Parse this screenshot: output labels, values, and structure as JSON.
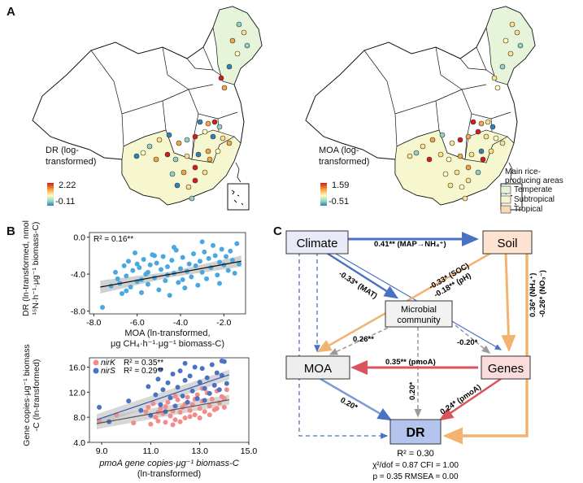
{
  "panel_a": {
    "letter": "A",
    "map_left": {
      "legend_title_1": "DR (log-",
      "legend_title_2": "transformed)",
      "legend_max": "2.22",
      "legend_min": "-0.11"
    },
    "map_right": {
      "legend_title_1": "MOA (log-",
      "legend_title_2": "transformed)",
      "legend_max": "1.59",
      "legend_min": "-0.51"
    },
    "rice_areas": {
      "title_1": "Main rice-",
      "title_2": "producing areas",
      "items": [
        {
          "label": "Temperate",
          "color": "#e6f4d9"
        },
        {
          "label": "Subtropical",
          "color": "#f6f7cf"
        },
        {
          "label": "Tropical",
          "color": "#f8d9b6"
        }
      ]
    }
  },
  "panel_b": {
    "letter": "B",
    "scatter_top": {
      "r2": "R² = 0.16**",
      "ylabel_1": "DR (ln-transformed, nmol",
      "ylabel_2": "¹⁵N·h⁻¹·μg⁻¹ biomass-C)",
      "xlabel_1": "MOA (ln-transformed,",
      "xlabel_2": "μg CH₄·h⁻¹·μg⁻¹ biomass-C)",
      "yticks": [
        "0.0",
        "-4.0",
        "-8.0"
      ],
      "xticks": [
        "-8.0",
        "-6.0",
        "-4.0",
        "-2.0"
      ]
    },
    "scatter_bottom": {
      "legend": [
        {
          "name": "nirK",
          "r2": "R² = 0.35**",
          "color": "#f28b8b"
        },
        {
          "name": "nirS",
          "r2": "R² = 0.29**",
          "color": "#4a72c4"
        }
      ],
      "ylabel_1": "Gene copies·μg⁻¹ biomass",
      "ylabel_2": "-C (ln-transformed)",
      "xlabel_1": "pmoA gene copies·μg⁻¹ biomass-C",
      "xlabel_2": "(ln-transformed)",
      "yticks": [
        "16.0",
        "12.0",
        "8.0",
        "4.0"
      ],
      "xticks": [
        "9.0",
        "11.0",
        "13.0",
        "15.0"
      ]
    }
  },
  "chart_data": [
    {
      "type": "scatter",
      "title": "",
      "xlabel": "MOA (ln-transformed, μg CH4·h-1·μg-1 biomass-C)",
      "ylabel": "DR (ln-transformed, nmol 15N·h-1·μg-1 biomass-C)",
      "xlim": [
        -8.2,
        -1.0
      ],
      "ylim": [
        -8.3,
        0.5
      ],
      "series": [
        {
          "name": "DR vs MOA",
          "points": [
            [
              -7.6,
              -7.6
            ],
            [
              -7.2,
              -5.3
            ],
            [
              -7.0,
              -3.8
            ],
            [
              -6.9,
              -4.5
            ],
            [
              -6.8,
              -5.0
            ],
            [
              -6.7,
              -6.1
            ],
            [
              -6.6,
              -3.1
            ],
            [
              -6.5,
              -4.2
            ],
            [
              -6.4,
              -2.6
            ],
            [
              -6.3,
              -5.4
            ],
            [
              -6.2,
              -3.6
            ],
            [
              -6.1,
              -1.7
            ],
            [
              -6.0,
              -4.8
            ],
            [
              -5.9,
              -3.3
            ],
            [
              -5.8,
              -6.0
            ],
            [
              -5.7,
              -2.4
            ],
            [
              -5.6,
              -4.0
            ],
            [
              -5.5,
              -5.1
            ],
            [
              -5.4,
              -3.0
            ],
            [
              -5.3,
              -1.9
            ],
            [
              -5.2,
              -4.4
            ],
            [
              -5.1,
              -2.8
            ],
            [
              -5.0,
              -5.7
            ],
            [
              -4.9,
              -3.5
            ],
            [
              -4.8,
              -2.1
            ],
            [
              -4.7,
              -4.7
            ],
            [
              -4.6,
              -3.2
            ],
            [
              -4.5,
              -6.3
            ],
            [
              -4.4,
              -2.5
            ],
            [
              -4.3,
              -3.9
            ],
            [
              -4.2,
              -1.4
            ],
            [
              -4.1,
              -4.9
            ],
            [
              -4.0,
              -3.4
            ],
            [
              -3.9,
              -2.2
            ],
            [
              -3.8,
              -5.5
            ],
            [
              -3.7,
              -3.7
            ],
            [
              -3.6,
              -2.9
            ],
            [
              -3.5,
              -4.3
            ],
            [
              -3.4,
              -1.8
            ],
            [
              -3.3,
              -3.1
            ],
            [
              -3.2,
              -5.2
            ],
            [
              -3.1,
              -2.6
            ],
            [
              -3.0,
              -3.8
            ],
            [
              -2.9,
              -1.6
            ],
            [
              -2.8,
              -4.5
            ],
            [
              -2.7,
              -2.3
            ],
            [
              -2.6,
              -3.3
            ],
            [
              -2.5,
              -0.9
            ],
            [
              -2.4,
              -2.0
            ],
            [
              -2.3,
              -4.1
            ],
            [
              -2.2,
              -2.7
            ],
            [
              -2.1,
              -1.3
            ],
            [
              -2.0,
              -3.0
            ],
            [
              -1.9,
              -2.1
            ],
            [
              -1.8,
              -3.6
            ],
            [
              -1.7,
              -1.5
            ],
            [
              -1.6,
              -2.5
            ],
            [
              -1.5,
              -3.9
            ],
            [
              -1.4,
              -0.7
            ],
            [
              -1.3,
              -2.9
            ],
            [
              -5.5,
              -3.8
            ],
            [
              -6.0,
              -2.9
            ],
            [
              -4.6,
              -4.1
            ],
            [
              -3.9,
              -4.6
            ],
            [
              -5.2,
              -2.0
            ],
            [
              -4.3,
              -1.1
            ],
            [
              -3.0,
              -0.5
            ],
            [
              -2.2,
              -5.0
            ],
            [
              -6.5,
              -5.8
            ],
            [
              -5.8,
              -4.6
            ]
          ]
        }
      ],
      "trend_line": [
        [
          -7.7,
          -5.4
        ],
        [
          -1.2,
          -2.6
        ]
      ],
      "annotation": "R² = 0.16**"
    },
    {
      "type": "scatter",
      "title": "",
      "xlabel": "pmoA gene copies·μg-1 biomass-C (ln-transformed)",
      "ylabel": "Gene copies·μg-1 biomass-C (ln-transformed)",
      "xlim": [
        8.5,
        15.0
      ],
      "ylim": [
        4.0,
        17.5
      ],
      "series": [
        {
          "name": "nirK",
          "points": [
            [
              8.9,
              7.4
            ],
            [
              9.6,
              8.4
            ],
            [
              10.3,
              7.1
            ],
            [
              10.8,
              8.9
            ],
            [
              11.0,
              6.9
            ],
            [
              11.1,
              10.2
            ],
            [
              11.2,
              8.0
            ],
            [
              11.3,
              7.4
            ],
            [
              11.4,
              9.4
            ],
            [
              11.5,
              8.6
            ],
            [
              11.6,
              7.2
            ],
            [
              11.7,
              10.4
            ],
            [
              11.8,
              8.2
            ],
            [
              11.9,
              9.0
            ],
            [
              12.0,
              7.6
            ],
            [
              12.1,
              10.8
            ],
            [
              12.2,
              8.8
            ],
            [
              12.3,
              9.6
            ],
            [
              12.4,
              7.9
            ],
            [
              12.5,
              11.2
            ],
            [
              12.6,
              9.1
            ],
            [
              12.7,
              10.0
            ],
            [
              12.8,
              8.4
            ],
            [
              12.9,
              11.6
            ],
            [
              13.0,
              9.4
            ],
            [
              13.1,
              10.6
            ],
            [
              13.2,
              8.9
            ],
            [
              13.3,
              11.9
            ],
            [
              13.4,
              9.8
            ],
            [
              13.5,
              10.9
            ],
            [
              13.6,
              9.2
            ],
            [
              13.7,
              12.2
            ],
            [
              13.8,
              10.3
            ],
            [
              13.9,
              11.3
            ],
            [
              14.0,
              9.6
            ],
            [
              14.1,
              12.4
            ],
            [
              11.6,
              9.7
            ],
            [
              12.2,
              7.3
            ],
            [
              12.8,
              10.9
            ],
            [
              13.4,
              8.4
            ],
            [
              14.0,
              11.0
            ],
            [
              11.3,
              8.8
            ],
            [
              12.6,
              8.1
            ],
            [
              13.1,
              12.6
            ],
            [
              10.9,
              9.6
            ],
            [
              12.0,
              11.4
            ],
            [
              13.7,
              9.4
            ],
            [
              11.9,
              6.8
            ],
            [
              12.4,
              10.1
            ],
            [
              13.0,
              7.9
            ]
          ]
        },
        {
          "name": "nirS",
          "points": [
            [
              8.9,
              9.6
            ],
            [
              9.3,
              7.3
            ],
            [
              10.1,
              10.6
            ],
            [
              10.6,
              9.1
            ],
            [
              10.9,
              12.9
            ],
            [
              11.0,
              8.3
            ],
            [
              11.2,
              11.6
            ],
            [
              11.3,
              14.1
            ],
            [
              11.4,
              10.0
            ],
            [
              11.5,
              12.4
            ],
            [
              11.6,
              8.9
            ],
            [
              11.7,
              13.5
            ],
            [
              11.8,
              11.1
            ],
            [
              11.9,
              14.9
            ],
            [
              12.0,
              9.8
            ],
            [
              12.1,
              12.8
            ],
            [
              12.2,
              15.4
            ],
            [
              12.3,
              11.4
            ],
            [
              12.4,
              13.9
            ],
            [
              12.5,
              10.4
            ],
            [
              12.6,
              14.6
            ],
            [
              12.7,
              12.2
            ],
            [
              12.8,
              16.0
            ],
            [
              12.9,
              11.0
            ],
            [
              13.0,
              13.6
            ],
            [
              13.1,
              15.8
            ],
            [
              13.2,
              12.6
            ],
            [
              13.3,
              14.3
            ],
            [
              13.4,
              11.8
            ],
            [
              13.5,
              16.4
            ],
            [
              13.6,
              13.1
            ],
            [
              13.7,
              15.1
            ],
            [
              13.8,
              12.4
            ],
            [
              13.9,
              14.7
            ],
            [
              14.0,
              16.9
            ],
            [
              14.1,
              13.4
            ],
            [
              11.4,
              15.6
            ],
            [
              12.4,
              16.6
            ],
            [
              13.2,
              10.7
            ],
            [
              13.9,
              17.0
            ]
          ]
        }
      ],
      "trend_lines": [
        {
          "series": "nirK",
          "points": [
            [
              8.8,
              7.0
            ],
            [
              14.2,
              10.8
            ]
          ]
        },
        {
          "series": "nirS",
          "points": [
            [
              8.8,
              7.6
            ],
            [
              14.2,
              14.8
            ]
          ]
        }
      ],
      "annotations": [
        "nirK R² = 0.35**",
        "nirS R² = 0.29**"
      ]
    }
  ],
  "panel_c": {
    "letter": "C",
    "nodes": {
      "climate": "Climate",
      "soil": "Soil",
      "microbial_1": "Microbial",
      "microbial_2": "community",
      "moa": "MOA",
      "genes": "Genes",
      "dr": "DR"
    },
    "paths": {
      "climate_soil": "0.41** (MAP→NH₄⁺)",
      "climate_microbial": "-0.33* (MAT)",
      "soil_moa_1": "-0.33* (SOC)",
      "soil_moa_2": "-0.18** (pH)",
      "microbial_moa": "0.26**",
      "microbial_genes": "-0.20*",
      "genes_moa": "0.35** (pmoA)",
      "soil_dr_1": "0.36* (NH₄⁺)",
      "soil_dr_2": "-0.26* (NO₃⁻)",
      "microbial_dr": "0.20*",
      "moa_dr": "0.20*",
      "genes_dr": "0.24* (pmoA)"
    },
    "stats": {
      "r2": "R² = 0.30",
      "line2": "χ²/dof = 0.87   CFI = 1.00",
      "line3": "p = 0.35   RMSEA = 0.00"
    }
  }
}
